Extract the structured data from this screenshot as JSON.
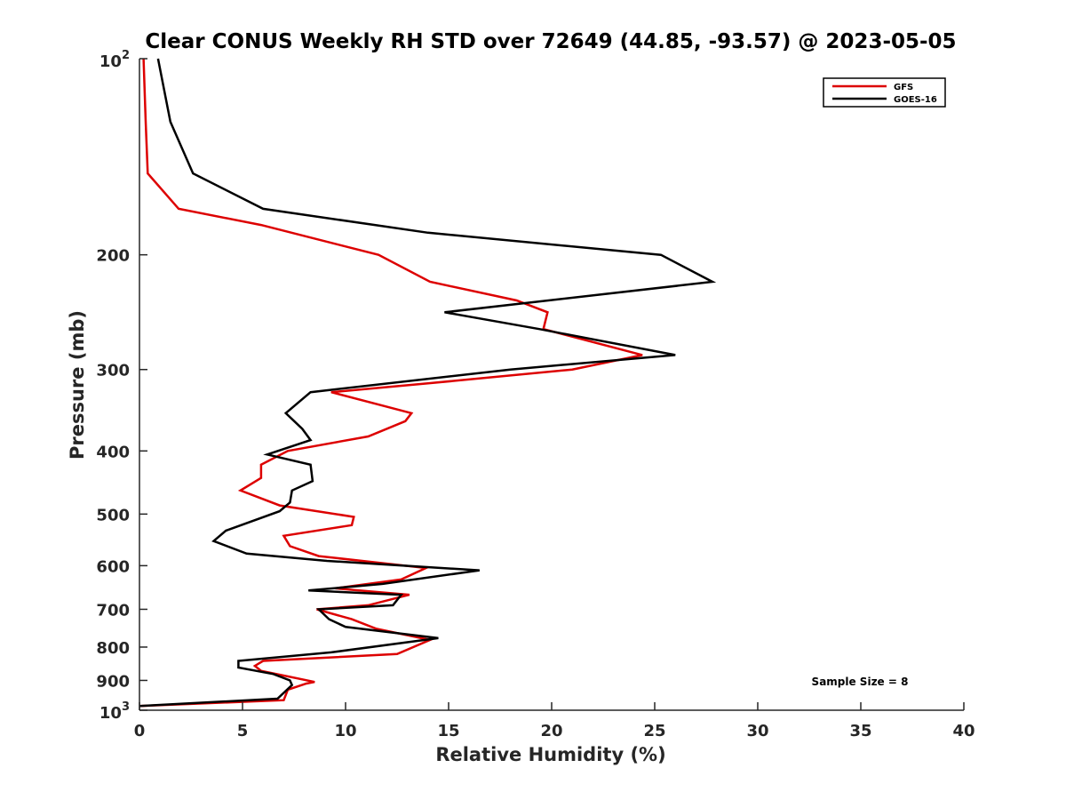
{
  "chart_data": {
    "type": "line",
    "title": "Clear CONUS Weekly RH STD over 72649 (44.85, -93.57) @ 2023-05-05",
    "xlabel": "Relative Humidity (%)",
    "ylabel": "Pressure (mb)",
    "xlim": [
      0,
      40
    ],
    "ylim": [
      100,
      1000
    ],
    "y_scale": "log",
    "y_reversed": true,
    "x_ticks": [
      0,
      5,
      10,
      15,
      20,
      25,
      30,
      35,
      40
    ],
    "y_ticks": [
      200,
      300,
      400,
      500,
      600,
      700,
      800,
      900
    ],
    "y_tick_labels": [
      "200",
      "300",
      "400",
      "500",
      "600",
      "700",
      "800",
      "900"
    ],
    "y_decade_ticks": [
      {
        "value": 100,
        "base": "10",
        "exp": "2"
      },
      {
        "value": 1000,
        "base": "10",
        "exp": "3"
      }
    ],
    "grid": false,
    "legend_position": "top-right",
    "annotation": "Sample Size = 8",
    "series": [
      {
        "name": "GFS",
        "color": "#dd0000",
        "points": [
          [
            0.2,
            100
          ],
          [
            0.3,
            125
          ],
          [
            0.4,
            150
          ],
          [
            1.9,
            170
          ],
          [
            5.9,
            180
          ],
          [
            11.6,
            200
          ],
          [
            14.1,
            220
          ],
          [
            18.3,
            235
          ],
          [
            19.8,
            245
          ],
          [
            19.6,
            260
          ],
          [
            24.4,
            285
          ],
          [
            21.0,
            300
          ],
          [
            14.0,
            315
          ],
          [
            9.3,
            325
          ],
          [
            13.2,
            350
          ],
          [
            12.9,
            360
          ],
          [
            11.1,
            380
          ],
          [
            7.2,
            400
          ],
          [
            5.9,
            420
          ],
          [
            5.9,
            440
          ],
          [
            4.9,
            460
          ],
          [
            6.8,
            485
          ],
          [
            10.4,
            505
          ],
          [
            10.3,
            520
          ],
          [
            7.0,
            540
          ],
          [
            7.3,
            560
          ],
          [
            8.7,
            580
          ],
          [
            13.9,
            605
          ],
          [
            12.7,
            630
          ],
          [
            9.5,
            650
          ],
          [
            13.1,
            665
          ],
          [
            11.1,
            690
          ],
          [
            8.6,
            700
          ],
          [
            10.3,
            725
          ],
          [
            11.5,
            750
          ],
          [
            14.1,
            780
          ],
          [
            12.5,
            820
          ],
          [
            6.0,
            840
          ],
          [
            5.6,
            855
          ],
          [
            5.9,
            870
          ],
          [
            8.5,
            905
          ],
          [
            8.1,
            910
          ],
          [
            7.2,
            930
          ],
          [
            7.0,
            965
          ],
          [
            0.0,
            985
          ]
        ]
      },
      {
        "name": "GOES-16",
        "color": "#000000",
        "points": [
          [
            0.9,
            100
          ],
          [
            1.5,
            125
          ],
          [
            2.6,
            150
          ],
          [
            6.0,
            170
          ],
          [
            14.0,
            185
          ],
          [
            25.3,
            200
          ],
          [
            27.8,
            220
          ],
          [
            14.8,
            245
          ],
          [
            19.4,
            260
          ],
          [
            26.0,
            285
          ],
          [
            18.0,
            300
          ],
          [
            8.3,
            325
          ],
          [
            7.1,
            350
          ],
          [
            7.9,
            370
          ],
          [
            8.3,
            385
          ],
          [
            6.2,
            405
          ],
          [
            8.3,
            420
          ],
          [
            8.4,
            445
          ],
          [
            7.4,
            460
          ],
          [
            7.3,
            480
          ],
          [
            6.8,
            495
          ],
          [
            4.2,
            530
          ],
          [
            3.6,
            550
          ],
          [
            5.2,
            575
          ],
          [
            9.1,
            590
          ],
          [
            16.5,
            610
          ],
          [
            11.8,
            640
          ],
          [
            8.2,
            655
          ],
          [
            12.7,
            665
          ],
          [
            12.3,
            690
          ],
          [
            8.7,
            700
          ],
          [
            9.2,
            725
          ],
          [
            10.0,
            745
          ],
          [
            14.5,
            775
          ],
          [
            9.3,
            815
          ],
          [
            4.8,
            840
          ],
          [
            4.8,
            860
          ],
          [
            6.5,
            880
          ],
          [
            7.3,
            900
          ],
          [
            7.4,
            915
          ],
          [
            6.7,
            960
          ],
          [
            0.0,
            985
          ]
        ]
      }
    ]
  }
}
